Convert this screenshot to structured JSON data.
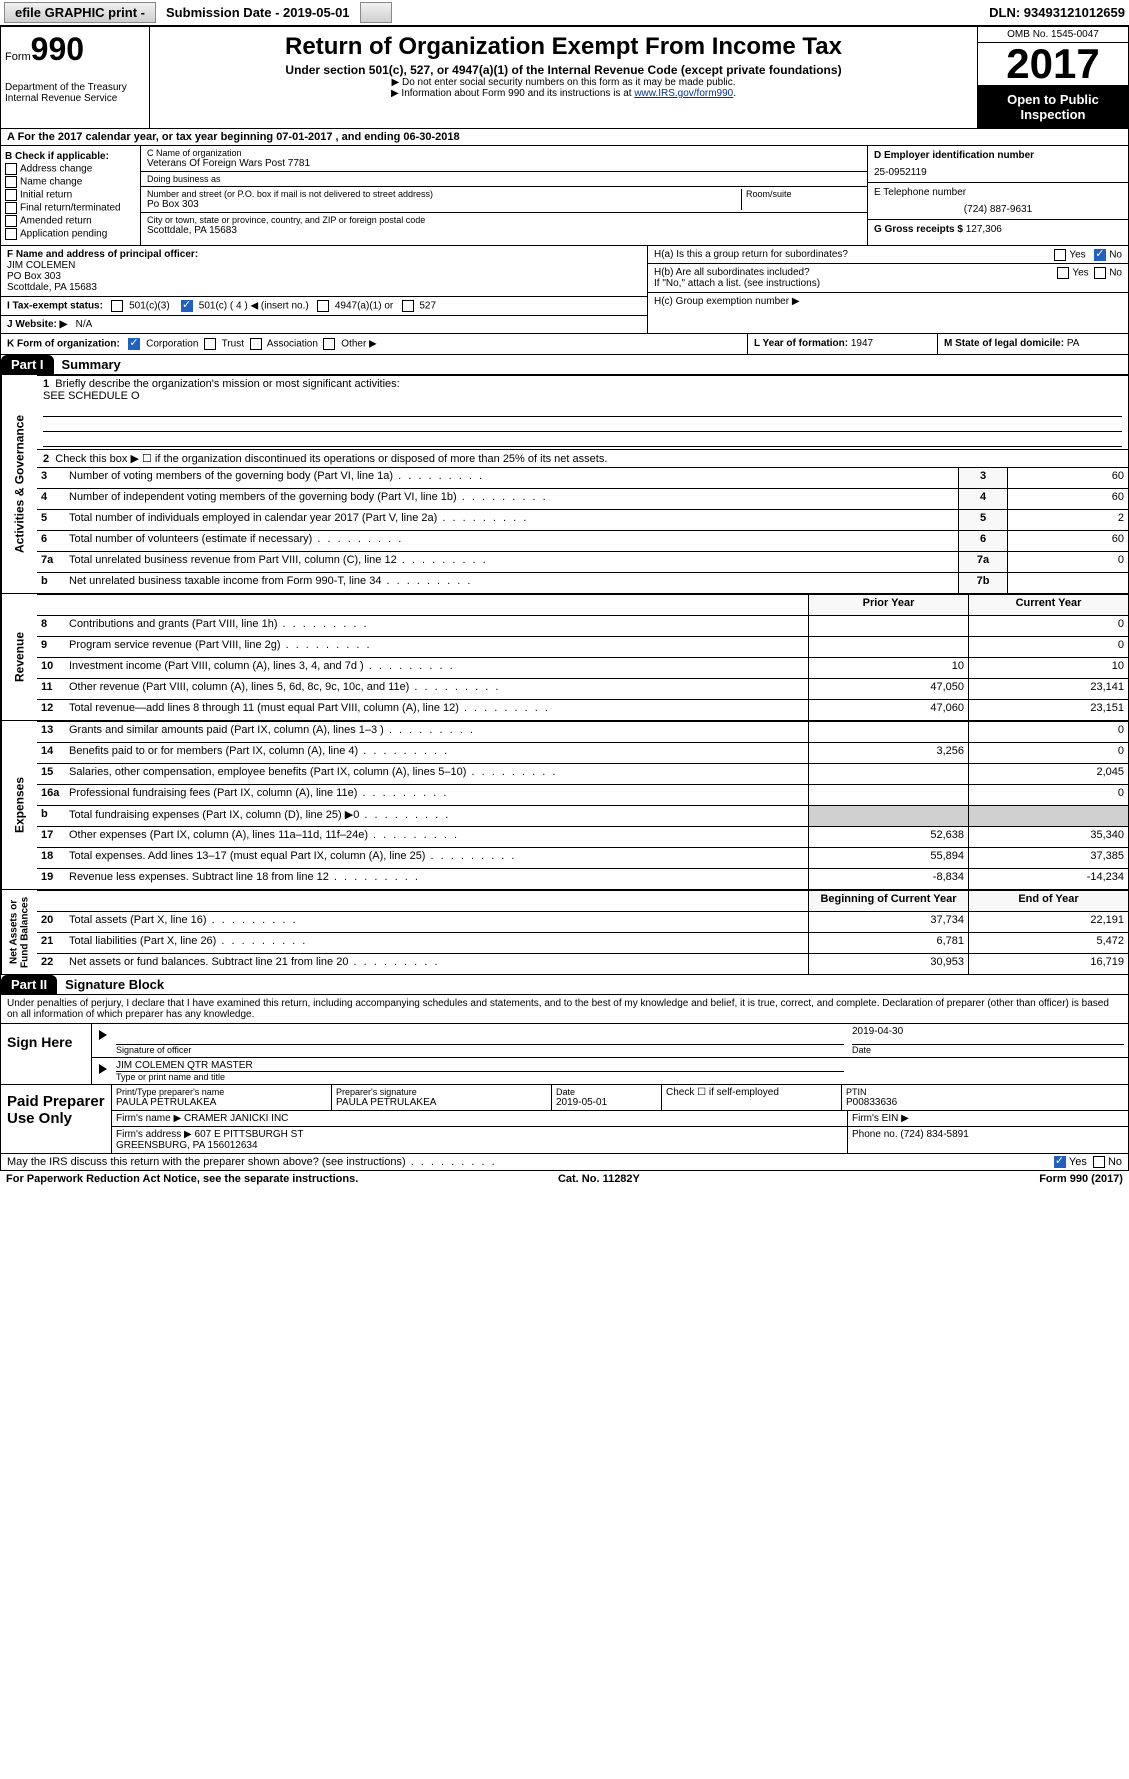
{
  "topbar": {
    "efile": "efile GRAPHIC print -",
    "submission": "Submission Date - 2019-05-01",
    "dln": "DLN: 93493121012659"
  },
  "header": {
    "form_prefix": "Form",
    "form_number": "990",
    "dept": "Department of the Treasury\nInternal Revenue Service",
    "title": "Return of Organization Exempt From Income Tax",
    "subtitle": "Under section 501(c), 527, or 4947(a)(1) of the Internal Revenue Code (except private foundations)",
    "note1": "▶ Do not enter social security numbers on this form as it may be made public.",
    "note2_prefix": "▶ Information about Form 990 and its instructions is at ",
    "note2_link": "www.IRS.gov/form990",
    "omb": "OMB No. 1545-0047",
    "year": "2017",
    "open": "Open to Public Inspection"
  },
  "rowA": "A For the 2017 calendar year, or tax year beginning 07-01-2017   , and ending 06-30-2018",
  "colB": {
    "title": "B Check if applicable:",
    "items": [
      "Address change",
      "Name change",
      "Initial return",
      "Final return/terminated",
      "Amended return",
      "Application pending"
    ]
  },
  "colC": {
    "name_lbl": "C Name of organization",
    "name": "Veterans Of Foreign Wars Post 7781",
    "dba_lbl": "Doing business as",
    "dba": "",
    "addr_lbl": "Number and street (or P.O. box if mail is not delivered to street address)",
    "room_lbl": "Room/suite",
    "addr": "Po Box 303",
    "city_lbl": "City or town, state or province, country, and ZIP or foreign postal code",
    "city": "Scottdale, PA  15683"
  },
  "colD": {
    "ein_lbl": "D Employer identification number",
    "ein": "25-0952119",
    "tel_lbl": "E Telephone number",
    "tel": "(724) 887-9631",
    "gross_lbl": "G Gross receipts $",
    "gross": "127,306"
  },
  "rowF": {
    "lbl": "F  Name and address of principal officer:",
    "name": "JIM COLEMEN",
    "addr1": "PO Box 303",
    "addr2": "Scottdale, PA  15683"
  },
  "rowI": {
    "lbl": "I   Tax-exempt status:",
    "opts": [
      "501(c)(3)",
      "501(c) ( 4 ) ◀ (insert no.)",
      "4947(a)(1) or",
      "527"
    ]
  },
  "rowJ": {
    "lbl": "J   Website: ▶",
    "val": "N/A"
  },
  "rowH": {
    "a": "H(a)  Is this a group return for subordinates?",
    "b": "H(b)  Are all subordinates included?",
    "b_note": "If \"No,\" attach a list. (see instructions)",
    "c": "H(c)  Group exemption number ▶"
  },
  "rowK": "K Form of organization:",
  "rowK_opts": [
    "Corporation",
    "Trust",
    "Association",
    "Other ▶"
  ],
  "rowL": {
    "lbl": "L Year of formation:",
    "val": "1947"
  },
  "rowM": {
    "lbl": "M State of legal domicile:",
    "val": "PA"
  },
  "parts": {
    "p1": "Part I",
    "p1_title": "Summary",
    "p2": "Part II",
    "p2_title": "Signature Block"
  },
  "summary": {
    "line1_lbl": "Briefly describe the organization's mission or most significant activities:",
    "line1_val": "SEE SCHEDULE O",
    "line2": "Check this box ▶ ☐  if the organization discontinued its operations or disposed of more than 25% of its net assets.",
    "governance": [
      {
        "n": "3",
        "t": "Number of voting members of the governing body (Part VI, line 1a)",
        "r": "3",
        "v": "60"
      },
      {
        "n": "4",
        "t": "Number of independent voting members of the governing body (Part VI, line 1b)",
        "r": "4",
        "v": "60"
      },
      {
        "n": "5",
        "t": "Total number of individuals employed in calendar year 2017 (Part V, line 2a)",
        "r": "5",
        "v": "2"
      },
      {
        "n": "6",
        "t": "Total number of volunteers (estimate if necessary)",
        "r": "6",
        "v": "60"
      },
      {
        "n": "7a",
        "t": "Total unrelated business revenue from Part VIII, column (C), line 12",
        "r": "7a",
        "v": "0"
      },
      {
        "n": "b",
        "t": "Net unrelated business taxable income from Form 990-T, line 34",
        "r": "7b",
        "v": ""
      }
    ],
    "hdr_prior": "Prior Year",
    "hdr_curr": "Current Year",
    "revenue": [
      {
        "n": "8",
        "t": "Contributions and grants (Part VIII, line 1h)",
        "p": "",
        "c": "0"
      },
      {
        "n": "9",
        "t": "Program service revenue (Part VIII, line 2g)",
        "p": "",
        "c": "0"
      },
      {
        "n": "10",
        "t": "Investment income (Part VIII, column (A), lines 3, 4, and 7d )",
        "p": "10",
        "c": "10"
      },
      {
        "n": "11",
        "t": "Other revenue (Part VIII, column (A), lines 5, 6d, 8c, 9c, 10c, and 11e)",
        "p": "47,050",
        "c": "23,141"
      },
      {
        "n": "12",
        "t": "Total revenue—add lines 8 through 11 (must equal Part VIII, column (A), line 12)",
        "p": "47,060",
        "c": "23,151"
      }
    ],
    "expenses": [
      {
        "n": "13",
        "t": "Grants and similar amounts paid (Part IX, column (A), lines 1–3 )",
        "p": "",
        "c": "0"
      },
      {
        "n": "14",
        "t": "Benefits paid to or for members (Part IX, column (A), line 4)",
        "p": "3,256",
        "c": "0"
      },
      {
        "n": "15",
        "t": "Salaries, other compensation, employee benefits (Part IX, column (A), lines 5–10)",
        "p": "",
        "c": "2,045"
      },
      {
        "n": "16a",
        "t": "Professional fundraising fees (Part IX, column (A), line 11e)",
        "p": "",
        "c": "0"
      },
      {
        "n": "b",
        "t": "Total fundraising expenses (Part IX, column (D), line 25) ▶0",
        "p": "gray",
        "c": "gray"
      },
      {
        "n": "17",
        "t": "Other expenses (Part IX, column (A), lines 11a–11d, 11f–24e)",
        "p": "52,638",
        "c": "35,340"
      },
      {
        "n": "18",
        "t": "Total expenses. Add lines 13–17 (must equal Part IX, column (A), line 25)",
        "p": "55,894",
        "c": "37,385"
      },
      {
        "n": "19",
        "t": "Revenue less expenses. Subtract line 18 from line 12",
        "p": "-8,834",
        "c": "-14,234"
      }
    ],
    "hdr_beg": "Beginning of Current Year",
    "hdr_end": "End of Year",
    "netassets": [
      {
        "n": "20",
        "t": "Total assets (Part X, line 16)",
        "p": "37,734",
        "c": "22,191"
      },
      {
        "n": "21",
        "t": "Total liabilities (Part X, line 26)",
        "p": "6,781",
        "c": "5,472"
      },
      {
        "n": "22",
        "t": "Net assets or fund balances. Subtract line 21 from line 20",
        "p": "30,953",
        "c": "16,719"
      }
    ],
    "vlabels": {
      "gov": "Activities & Governance",
      "rev": "Revenue",
      "exp": "Expenses",
      "net": "Net Assets or\nFund Balances"
    }
  },
  "sig": {
    "perjury": "Under penalties of perjury, I declare that I have examined this return, including accompanying schedules and statements, and to the best of my knowledge and belief, it is true, correct, and complete. Declaration of preparer (other than officer) is based on all information of which preparer has any knowledge.",
    "sign_here": "Sign Here",
    "sig_officer_lbl": "Signature of officer",
    "date_lbl": "Date",
    "date_val": "2019-04-30",
    "officer_name": "JIM COLEMEN QTR MASTER",
    "officer_type_lbl": "Type or print name and title"
  },
  "paid": {
    "lab": "Paid Preparer Use Only",
    "name_lbl": "Print/Type preparer's name",
    "name": "PAULA PETRULAKEA",
    "sig_lbl": "Preparer's signature",
    "sig": "PAULA PETRULAKEA",
    "pdate_lbl": "Date",
    "pdate": "2019-05-01",
    "self_lbl": "Check ☐ if self-employed",
    "ptin_lbl": "PTIN",
    "ptin": "P00833636",
    "firm_name_lbl": "Firm's name    ▶",
    "firm_name": "CRAMER JANICKI INC",
    "firm_ein_lbl": "Firm's EIN ▶",
    "firm_ein": "",
    "firm_addr_lbl": "Firm's address ▶",
    "firm_addr": "607 E PITTSBURGH ST\nGREENSBURG, PA  156012634",
    "phone_lbl": "Phone no.",
    "phone": "(724) 834-5891"
  },
  "discuss": "May the IRS discuss this return with the preparer shown above? (see instructions)",
  "footer": {
    "left": "For Paperwork Reduction Act Notice, see the separate instructions.",
    "mid": "Cat. No. 11282Y",
    "right": "Form 990 (2017)"
  }
}
